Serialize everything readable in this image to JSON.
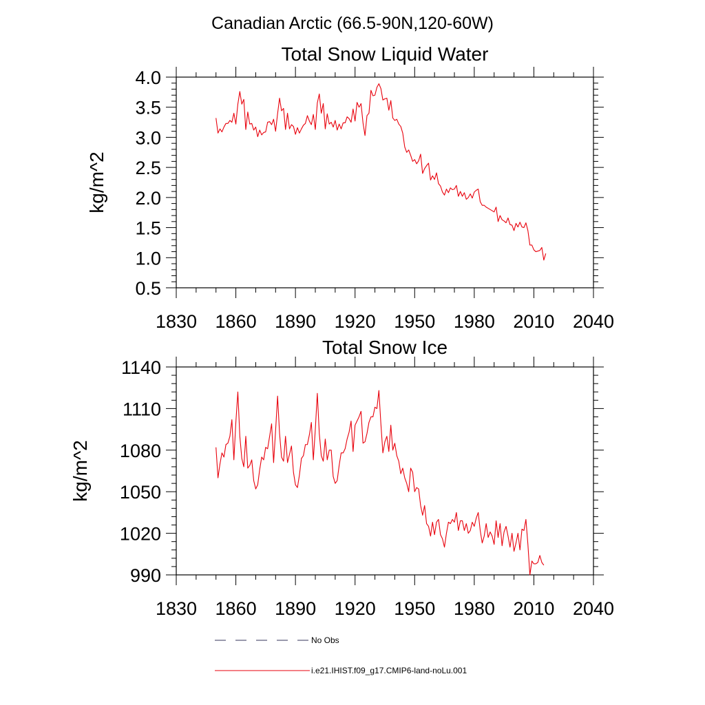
{
  "page": {
    "title": "Canadian Arctic (66.5-90N,120-60W)"
  },
  "legend": {
    "items": [
      {
        "label": "No Obs",
        "color": "#33335a",
        "dash": "dashed"
      },
      {
        "label": "i.e21.IHIST.f09_g17.CMIP6-land-noLu.001",
        "color": "#e8000b",
        "dash": "solid"
      }
    ]
  },
  "colors": {
    "series": "#e8000b",
    "axes": "#000000"
  },
  "chart_data": [
    {
      "type": "line",
      "title": "Total Snow Liquid Water",
      "ylabel": "kg/m^2",
      "xlabel": "",
      "xlim": [
        1830,
        2040
      ],
      "ylim": [
        0.5,
        4.0
      ],
      "xticks": [
        1830,
        1860,
        1890,
        1920,
        1950,
        1980,
        2010,
        2040
      ],
      "xtick_labels": [
        "1830",
        "1860",
        "1890",
        "1920",
        "1950",
        "1980",
        "2010",
        "2040"
      ],
      "yticks": [
        0.5,
        1.0,
        1.5,
        2.0,
        2.5,
        3.0,
        3.5,
        4.0
      ],
      "ytick_labels": [
        "0.5",
        "1.0",
        "1.5",
        "2.0",
        "2.5",
        "3.0",
        "3.5",
        "4.0"
      ],
      "grid": false,
      "series": [
        {
          "color": "#e8000b",
          "x_start": 1850,
          "x_step": 1,
          "values": [
            3.32,
            3.07,
            3.14,
            3.09,
            3.17,
            3.23,
            3.23,
            3.28,
            3.25,
            3.4,
            3.22,
            3.55,
            3.76,
            3.55,
            3.63,
            3.13,
            3.42,
            3.22,
            3.23,
            3.12,
            3.17,
            3.01,
            3.12,
            3.04,
            3.08,
            3.09,
            3.25,
            3.26,
            3.21,
            3.3,
            3.1,
            3.39,
            3.65,
            3.44,
            3.48,
            3.13,
            3.4,
            3.14,
            3.21,
            3.18,
            3.05,
            3.16,
            3.07,
            3.14,
            3.2,
            3.23,
            3.36,
            3.27,
            3.21,
            3.38,
            3.13,
            3.57,
            3.72,
            3.4,
            3.56,
            3.14,
            3.39,
            3.22,
            3.25,
            3.17,
            3.28,
            3.12,
            3.22,
            3.14,
            3.24,
            3.24,
            3.34,
            3.31,
            3.25,
            3.47,
            3.27,
            3.58,
            3.5,
            3.56,
            3.24,
            3.03,
            3.36,
            3.4,
            3.78,
            3.69,
            3.7,
            3.83,
            3.89,
            3.81,
            3.62,
            3.64,
            3.65,
            3.45,
            3.61,
            3.32,
            3.28,
            3.3,
            3.22,
            3.18,
            3.07,
            2.84,
            2.75,
            2.79,
            2.7,
            2.6,
            2.63,
            2.56,
            2.61,
            2.72,
            2.4,
            2.48,
            2.53,
            2.57,
            2.29,
            2.36,
            2.3,
            2.41,
            2.23,
            2.19,
            2.09,
            2.04,
            2.14,
            2.08,
            2.16,
            2.13,
            2.14,
            2.2,
            2.02,
            2.1,
            2.02,
            2.08,
            1.97,
            2.0,
            2.06,
            1.99,
            2.09,
            2.12,
            2.14,
            1.93,
            1.87,
            1.87,
            1.84,
            1.82,
            1.8,
            1.78,
            1.76,
            1.84,
            1.6,
            1.7,
            1.63,
            1.61,
            1.58,
            1.66,
            1.55,
            1.54,
            1.45,
            1.57,
            1.51,
            1.59,
            1.51,
            1.5,
            1.58,
            1.45,
            1.21,
            1.21,
            1.13,
            1.1,
            1.11,
            1.12,
            1.17,
            0.96,
            1.07
          ]
        }
      ]
    },
    {
      "type": "line",
      "title": "Total Snow Ice",
      "ylabel": "kg/m^2",
      "xlabel": "",
      "xlim": [
        1830,
        2040
      ],
      "ylim": [
        990,
        1140
      ],
      "xticks": [
        1830,
        1860,
        1890,
        1920,
        1950,
        1980,
        2010,
        2040
      ],
      "xtick_labels": [
        "1830",
        "1860",
        "1890",
        "1920",
        "1950",
        "1980",
        "2010",
        "2040"
      ],
      "yticks": [
        990,
        1020,
        1050,
        1080,
        1110,
        1140
      ],
      "ytick_labels": [
        "990",
        "1020",
        "1050",
        "1080",
        "1110",
        "1140"
      ],
      "grid": false,
      "series": [
        {
          "color": "#e8000b",
          "x_start": 1850,
          "x_step": 1,
          "values": [
            1082,
            1060,
            1070,
            1078,
            1075,
            1084,
            1085,
            1090,
            1102,
            1073,
            1100,
            1122,
            1090,
            1074,
            1068,
            1090,
            1067,
            1069,
            1073,
            1058,
            1052,
            1055,
            1066,
            1075,
            1073,
            1082,
            1081,
            1090,
            1099,
            1071,
            1094,
            1119,
            1092,
            1075,
            1072,
            1090,
            1071,
            1077,
            1083,
            1064,
            1055,
            1053,
            1062,
            1074,
            1076,
            1084,
            1084,
            1091,
            1100,
            1073,
            1095,
            1121,
            1092,
            1076,
            1072,
            1088,
            1073,
            1080,
            1080,
            1061,
            1056,
            1058,
            1069,
            1078,
            1078,
            1081,
            1088,
            1093,
            1101,
            1079,
            1098,
            1101,
            1104,
            1108,
            1085,
            1086,
            1092,
            1100,
            1104,
            1104,
            1111,
            1110,
            1123,
            1099,
            1078,
            1086,
            1090,
            1079,
            1098,
            1080,
            1085,
            1076,
            1072,
            1063,
            1067,
            1060,
            1056,
            1050,
            1067,
            1064,
            1050,
            1053,
            1052,
            1040,
            1033,
            1040,
            1027,
            1025,
            1018,
            1028,
            1019,
            1028,
            1030,
            1019,
            1016,
            1010,
            1020,
            1028,
            1027,
            1030,
            1028,
            1035,
            1022,
            1029,
            1029,
            1022,
            1027,
            1020,
            1022,
            1028,
            1025,
            1031,
            1035,
            1022,
            1013,
            1018,
            1027,
            1017,
            1021,
            1018,
            1012,
            1029,
            1017,
            1027,
            1011,
            1021,
            1025,
            1018,
            1010,
            1020,
            1007,
            1013,
            1020,
            1008,
            1023,
            1022,
            1030,
            1012,
            990,
            1000,
            998,
            998,
            999,
            1004,
            999,
            997
          ]
        }
      ]
    }
  ]
}
